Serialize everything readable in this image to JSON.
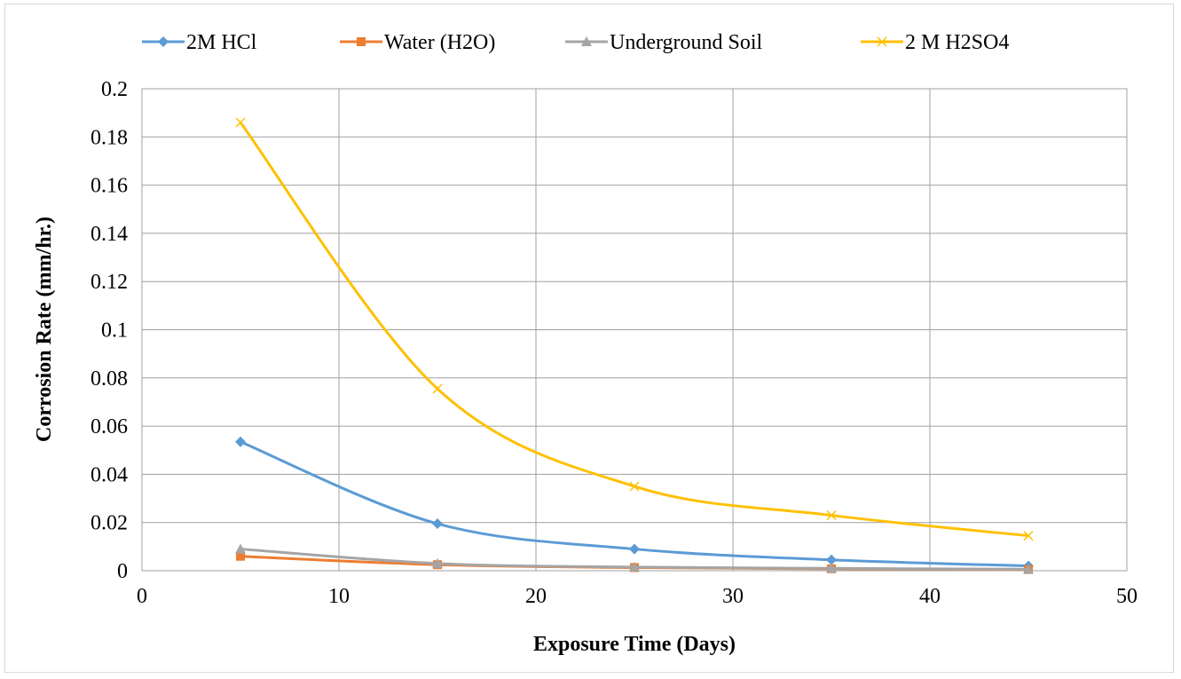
{
  "chart_data": {
    "type": "line",
    "xlabel": "Exposure Time (Days)",
    "ylabel": "Corrosion Rate (mm/hr.)",
    "xlim": [
      0,
      50
    ],
    "ylim": [
      0,
      0.2
    ],
    "x_ticks": [
      0,
      10,
      20,
      30,
      40,
      50
    ],
    "x_tick_labels": [
      "0",
      "10",
      "20",
      "30",
      "40",
      "50"
    ],
    "y_ticks": [
      0,
      0.02,
      0.04,
      0.06,
      0.08,
      0.1,
      0.12,
      0.14,
      0.16,
      0.18,
      0.2
    ],
    "y_tick_labels": [
      "0",
      "0.02",
      "0.04",
      "0.06",
      "0.08",
      "0.1",
      "0.12",
      "0.14",
      "0.16",
      "0.18",
      "0.2"
    ],
    "grid": true,
    "legend_position": "top",
    "x": [
      5,
      15,
      25,
      35,
      45
    ],
    "series": [
      {
        "name": "2M HCl",
        "color": "#5b9bd5",
        "marker": "diamond",
        "values": [
          0.0535,
          0.0195,
          0.009,
          0.0045,
          0.002
        ]
      },
      {
        "name": "Water (H2O)",
        "color": "#ed7d31",
        "marker": "square",
        "values": [
          0.006,
          0.0025,
          0.0013,
          0.0008,
          0.0005
        ]
      },
      {
        "name": "Underground Soil",
        "color": "#a5a5a5",
        "marker": "triangle",
        "values": [
          0.009,
          0.003,
          0.0015,
          0.001,
          0.0006
        ]
      },
      {
        "name": "2 M H2SO4",
        "color": "#ffc000",
        "marker": "x",
        "values": [
          0.186,
          0.0755,
          0.035,
          0.023,
          0.0145
        ]
      }
    ]
  }
}
